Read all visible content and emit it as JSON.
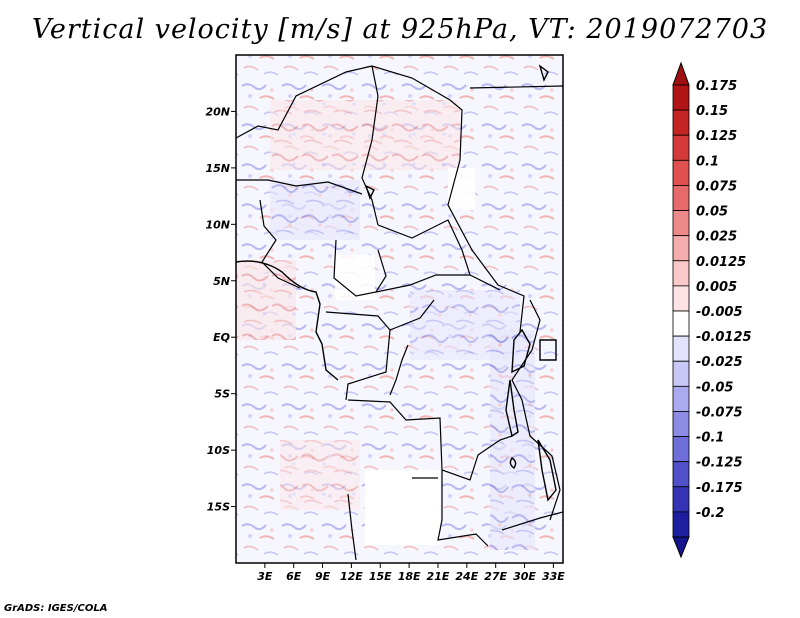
{
  "title": "Vertical velocity [m/s] at 925hPa, VT: 2019072703",
  "credit": "GrADS: IGES/COLA",
  "map": {
    "lon_range": [
      0,
      34
    ],
    "lat_range": [
      -20,
      25
    ],
    "lon_ticks": [
      {
        "value": 3,
        "label": "3E"
      },
      {
        "value": 6,
        "label": "6E"
      },
      {
        "value": 9,
        "label": "9E"
      },
      {
        "value": 12,
        "label": "12E"
      },
      {
        "value": 15,
        "label": "15E"
      },
      {
        "value": 18,
        "label": "18E"
      },
      {
        "value": 21,
        "label": "21E"
      },
      {
        "value": 24,
        "label": "24E"
      },
      {
        "value": 27,
        "label": "27E"
      },
      {
        "value": 30,
        "label": "30E"
      },
      {
        "value": 33,
        "label": "33E"
      }
    ],
    "lat_ticks": [
      {
        "value": 20,
        "label": "20N"
      },
      {
        "value": 15,
        "label": "15N"
      },
      {
        "value": 10,
        "label": "10N"
      },
      {
        "value": 5,
        "label": "5N"
      },
      {
        "value": 0,
        "label": "EQ"
      },
      {
        "value": -5,
        "label": "5S"
      },
      {
        "value": -10,
        "label": "10S"
      },
      {
        "value": -15,
        "label": "15S"
      }
    ]
  },
  "colorbar": {
    "levels": [
      {
        "label": "0.175",
        "color": "#b01414"
      },
      {
        "label": "0.15",
        "color": "#c42424"
      },
      {
        "label": "0.125",
        "color": "#d43a3a"
      },
      {
        "label": "0.1",
        "color": "#e05050"
      },
      {
        "label": "0.075",
        "color": "#e66a6a"
      },
      {
        "label": "0.05",
        "color": "#ec8a8a"
      },
      {
        "label": "0.025",
        "color": "#f4acac"
      },
      {
        "label": "0.0125",
        "color": "#fac8c8"
      },
      {
        "label": "0.005",
        "color": "#fde3e3"
      },
      {
        "label": "-0.005",
        "color": "#ffffff"
      },
      {
        "label": "-0.0125",
        "color": "#e2e2fb"
      },
      {
        "label": "-0.025",
        "color": "#c8c8f6"
      },
      {
        "label": "-0.05",
        "color": "#aaaaee"
      },
      {
        "label": "-0.075",
        "color": "#8c8ce4"
      },
      {
        "label": "-0.1",
        "color": "#6e6ed8"
      },
      {
        "label": "-0.125",
        "color": "#5050c8"
      },
      {
        "label": "-0.175",
        "color": "#3434b4"
      },
      {
        "label": "-0.2",
        "color": "#1e1ea0"
      }
    ],
    "top_triangle_color": "#a01010",
    "bottom_triangle_color": "#14148c"
  }
}
